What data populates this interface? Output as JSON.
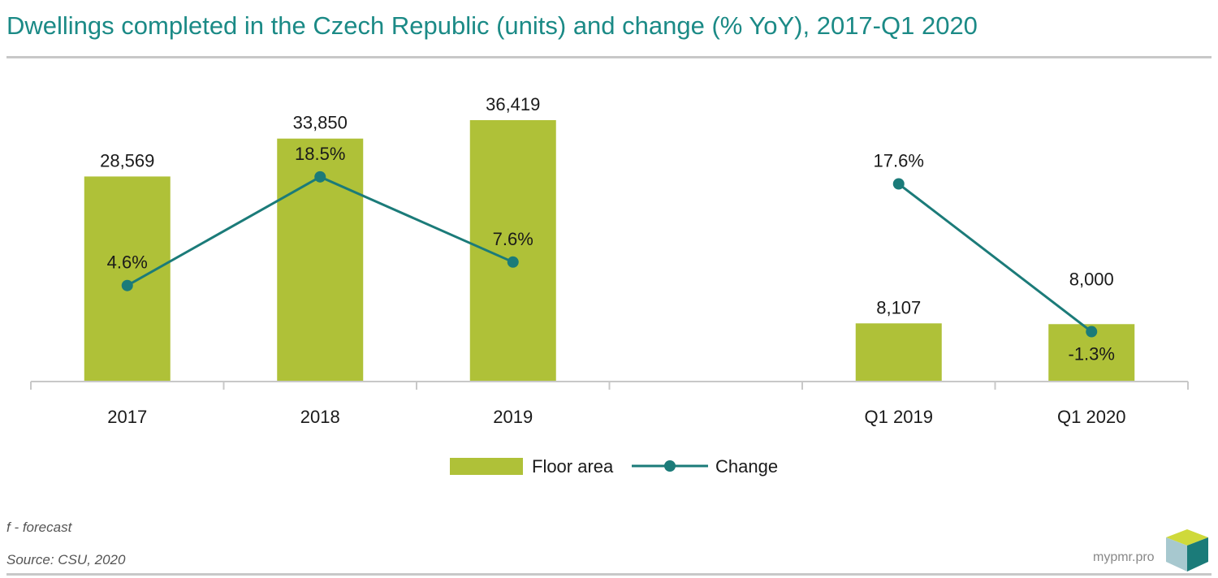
{
  "header": {
    "title": "Dwellings completed in the Czech Republic (units) and change (% YoY), 2017-Q1 2020"
  },
  "chart_data": {
    "type": "bar",
    "categories": [
      "2017",
      "2018",
      "2019",
      "",
      "Q1 2019",
      "Q1 2020"
    ],
    "series": [
      {
        "name": "Floor area",
        "type": "bar",
        "color": "#afc138",
        "values": [
          28569,
          33850,
          36419,
          null,
          8107,
          8000
        ],
        "labels": [
          "28,569",
          "33,850",
          "36,419",
          null,
          "8,107",
          "8,000"
        ]
      },
      {
        "name": "Change",
        "type": "line",
        "color": "#1b7b79",
        "values": [
          4.6,
          18.5,
          7.6,
          null,
          17.6,
          -1.3
        ],
        "labels": [
          "4.6%",
          "18.5%",
          "7.6%",
          null,
          "17.6%",
          "-1.3%"
        ]
      }
    ],
    "legend_position": "bottom",
    "grid": false
  },
  "footer": {
    "note": "f - forecast",
    "source": "Source: CSU, 2020",
    "brand": "mypmr.pro"
  }
}
